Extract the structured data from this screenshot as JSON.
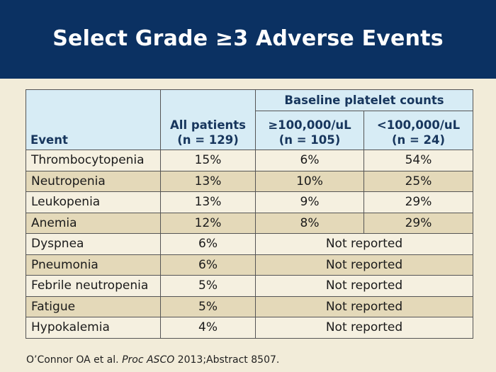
{
  "title": "Select Grade ≥3 Adverse Events",
  "table": {
    "header": {
      "event": "Event",
      "all_patients_line1": "All patients",
      "all_patients_line2": "(n = 129)",
      "group": "Baseline platelet counts",
      "high_line1": "≥100,000/uL",
      "high_line2": "(n = 105)",
      "low_line1": "<100,000/uL",
      "low_line2": "(n = 24)"
    },
    "rows": [
      {
        "event": "Thrombocytopenia",
        "all": "15%",
        "high": "6%",
        "low": "54%"
      },
      {
        "event": "Neutropenia",
        "all": "13%",
        "high": "10%",
        "low": "25%"
      },
      {
        "event": "Leukopenia",
        "all": "13%",
        "high": "9%",
        "low": "29%"
      },
      {
        "event": "Anemia",
        "all": "12%",
        "high": "8%",
        "low": "29%"
      },
      {
        "event": "Dyspnea",
        "all": "6%",
        "merged": "Not reported"
      },
      {
        "event": "Pneumonia",
        "all": "6%",
        "merged": "Not reported"
      },
      {
        "event": "Febrile neutropenia",
        "all": "5%",
        "merged": "Not reported"
      },
      {
        "event": "Fatigue",
        "all": "5%",
        "merged": "Not reported"
      },
      {
        "event": "Hypokalemia",
        "all": "4%",
        "merged": "Not reported"
      }
    ]
  },
  "footnote": {
    "prefix": "O’Connor OA et al. ",
    "journal": "Proc ASCO",
    "suffix": " 2013;Abstract 8507."
  },
  "colors": {
    "title_band": "#0b3162",
    "background": "#f2ecd9",
    "header_fill": "#d7ecf5",
    "header_text": "#17365d",
    "row_light": "#f5f0e0",
    "row_dark": "#e4d9b9"
  }
}
